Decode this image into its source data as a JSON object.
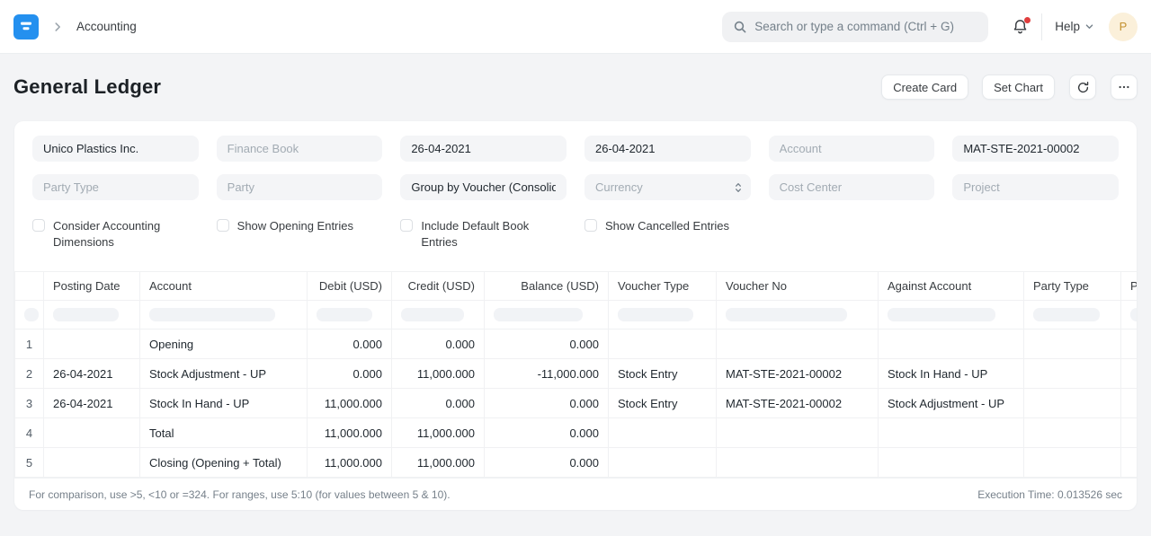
{
  "navbar": {
    "breadcrumb": "Accounting",
    "search_placeholder": "Search or type a command (Ctrl + G)",
    "help_label": "Help",
    "avatar_initial": "P"
  },
  "colors": {
    "brand_blue": "#2490ef",
    "notification_dot": "#e03e3e",
    "avatar_bg": "#fbf0da",
    "avatar_text": "#c3912f"
  },
  "page": {
    "title": "General Ledger",
    "buttons": {
      "create_card": "Create Card",
      "set_chart": "Set Chart"
    },
    "icons": [
      "refresh-icon",
      "ellipsis-icon"
    ]
  },
  "filters": {
    "fields": [
      {
        "name": "company",
        "text": "Unico Plastics Inc.",
        "filled": true,
        "select": false
      },
      {
        "name": "finance-book",
        "text": "Finance Book",
        "filled": false,
        "select": false
      },
      {
        "name": "from-date",
        "text": "26-04-2021",
        "filled": true,
        "select": false
      },
      {
        "name": "to-date",
        "text": "26-04-2021",
        "filled": true,
        "select": false
      },
      {
        "name": "account",
        "text": "Account",
        "filled": false,
        "select": false
      },
      {
        "name": "voucher-no",
        "text": "MAT-STE-2021-00002",
        "filled": true,
        "select": false
      },
      {
        "name": "party-type",
        "text": "Party Type",
        "filled": false,
        "select": false
      },
      {
        "name": "party",
        "text": "Party",
        "filled": false,
        "select": false
      },
      {
        "name": "group-by",
        "text": "Group by Voucher (Consolidated)",
        "filled": true,
        "select": false
      },
      {
        "name": "currency",
        "text": "Currency",
        "filled": false,
        "select": true
      },
      {
        "name": "cost-center",
        "text": "Cost Center",
        "filled": false,
        "select": false
      },
      {
        "name": "project",
        "text": "Project",
        "filled": false,
        "select": false
      }
    ],
    "checkboxes": [
      {
        "name": "consider-accounting-dimensions",
        "label": "Consider Accounting Dimensions",
        "checked": false
      },
      {
        "name": "show-opening-entries",
        "label": "Show Opening Entries",
        "checked": false
      },
      {
        "name": "include-default-book-entries",
        "label": "Include Default Book Entries",
        "checked": false
      },
      {
        "name": "show-cancelled-entries",
        "label": "Show Cancelled Entries",
        "checked": false
      }
    ]
  },
  "table": {
    "columns": [
      {
        "label": "",
        "align": "left"
      },
      {
        "label": "Posting Date",
        "align": "left"
      },
      {
        "label": "Account",
        "align": "left"
      },
      {
        "label": "Debit (USD)",
        "align": "right"
      },
      {
        "label": "Credit (USD)",
        "align": "right"
      },
      {
        "label": "Balance (USD)",
        "align": "right"
      },
      {
        "label": "Voucher Type",
        "align": "left"
      },
      {
        "label": "Voucher No",
        "align": "left"
      },
      {
        "label": "Against Account",
        "align": "left"
      },
      {
        "label": "Party Type",
        "align": "left"
      },
      {
        "label": "Party",
        "align": "left"
      }
    ],
    "rows": [
      [
        "1",
        "",
        "Opening",
        "0.000",
        "0.000",
        "0.000",
        "",
        "",
        "",
        "",
        ""
      ],
      [
        "2",
        "26-04-2021",
        "Stock Adjustment - UP",
        "0.000",
        "11,000.000",
        "-11,000.000",
        "Stock Entry",
        "MAT-STE-2021-00002",
        "Stock In Hand - UP",
        "",
        ""
      ],
      [
        "3",
        "26-04-2021",
        "Stock In Hand - UP",
        "11,000.000",
        "0.000",
        "0.000",
        "Stock Entry",
        "MAT-STE-2021-00002",
        "Stock Adjustment - UP",
        "",
        ""
      ],
      [
        "4",
        "",
        "Total",
        "11,000.000",
        "11,000.000",
        "0.000",
        "",
        "",
        "",
        "",
        ""
      ],
      [
        "5",
        "",
        "Closing (Opening + Total)",
        "11,000.000",
        "11,000.000",
        "0.000",
        "",
        "",
        "",
        "",
        ""
      ]
    ]
  },
  "footer": {
    "hint": "For comparison, use >5, <10 or =324. For ranges, use 5:10 (for values between 5 & 10).",
    "execution_time": "Execution Time: 0.013526 sec"
  }
}
